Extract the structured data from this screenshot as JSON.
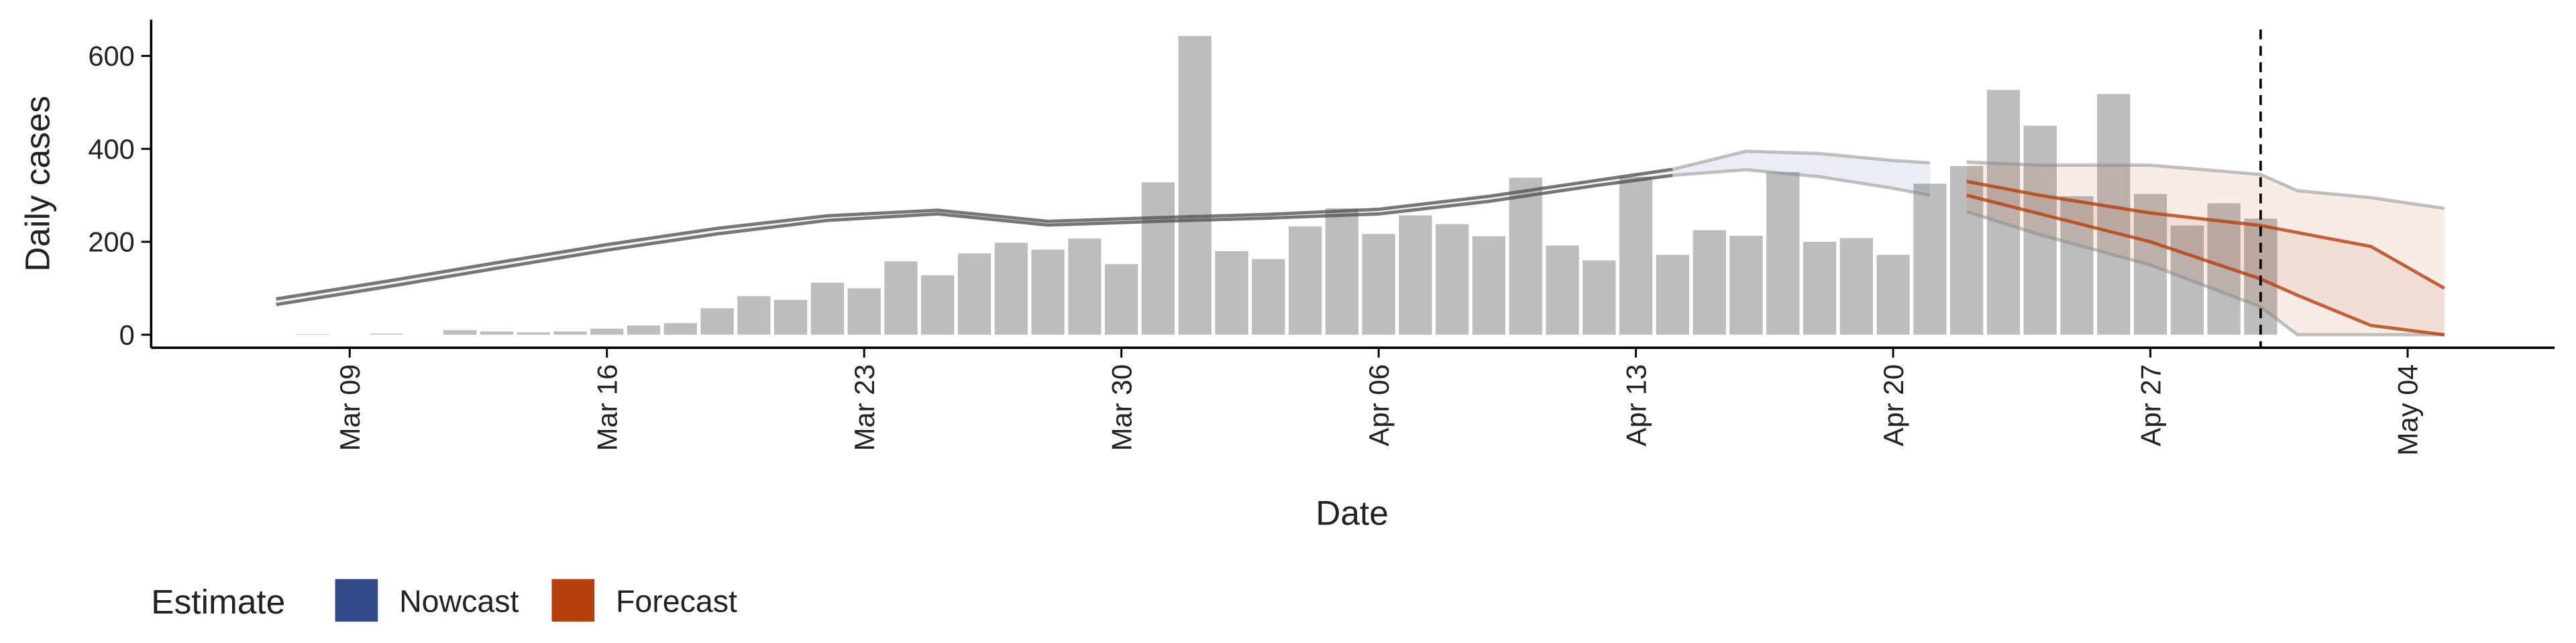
{
  "chart_data": {
    "type": "bar",
    "xlabel": "Date",
    "ylabel": "Daily cases",
    "x": [
      "Mar 08",
      "Mar 09",
      "Mar 10",
      "Mar 11",
      "Mar 12",
      "Mar 13",
      "Mar 14",
      "Mar 15",
      "Mar 16",
      "Mar 17",
      "Mar 18",
      "Mar 19",
      "Mar 20",
      "Mar 21",
      "Mar 22",
      "Mar 23",
      "Mar 24",
      "Mar 25",
      "Mar 26",
      "Mar 27",
      "Mar 28",
      "Mar 29",
      "Mar 30",
      "Mar 31",
      "Apr 01",
      "Apr 02",
      "Apr 03",
      "Apr 04",
      "Apr 05",
      "Apr 06",
      "Apr 07",
      "Apr 08",
      "Apr 09",
      "Apr 10",
      "Apr 11",
      "Apr 12",
      "Apr 13",
      "Apr 14",
      "Apr 15",
      "Apr 16",
      "Apr 17",
      "Apr 18",
      "Apr 19",
      "Apr 20",
      "Apr 21",
      "Apr 22",
      "Apr 23",
      "Apr 24",
      "Apr 25",
      "Apr 26",
      "Apr 27",
      "Apr 28",
      "Apr 29",
      "Apr 30"
    ],
    "values": [
      1,
      0,
      2,
      0,
      10,
      7,
      5,
      7,
      13,
      20,
      25,
      57,
      83,
      75,
      112,
      100,
      158,
      128,
      175,
      198,
      183,
      207,
      152,
      328,
      643,
      180,
      163,
      233,
      272,
      217,
      257,
      238,
      212,
      338,
      192,
      160,
      340,
      172,
      225,
      213,
      350,
      200,
      208,
      172,
      325,
      363,
      527,
      450,
      298,
      518,
      303,
      235,
      283,
      250
    ],
    "color": "#bdbdbd",
    "xlim": [
      "Mar 04",
      "May 08"
    ],
    "ylim": [
      -28,
      678
    ],
    "xticks": [
      "Mar 09",
      "Mar 16",
      "Mar 23",
      "Mar 30",
      "Apr 06",
      "Apr 13",
      "Apr 20",
      "Apr 27",
      "May 04"
    ],
    "yticks": [
      0,
      200,
      400,
      600
    ],
    "vline": "Apr 30",
    "legend_title": "Estimate",
    "bands": [
      {
        "color": "#555555",
        "x": [
          "Mar 07",
          "Mar 10",
          "Mar 13",
          "Mar 16",
          "Mar 19",
          "Mar 22",
          "Mar 25",
          "Mar 28",
          "Mar 31",
          "Apr 03",
          "Apr 06",
          "Apr 09",
          "Apr 12",
          "Apr 14"
        ],
        "lower": [
          65,
          103,
          143,
          182,
          217,
          246,
          260,
          236,
          244,
          251,
          260,
          287,
          322,
          343
        ],
        "upper": [
          77,
          115,
          155,
          194,
          229,
          256,
          268,
          244,
          252,
          259,
          270,
          298,
          333,
          356
        ]
      },
      {
        "name": "Nowcast",
        "color": "#344b8a",
        "x": [
          "Apr 14",
          "Apr 16",
          "Apr 18",
          "Apr 20",
          "Apr 21"
        ],
        "lower": [
          343,
          355,
          340,
          315,
          300
        ],
        "upper": [
          356,
          395,
          390,
          375,
          370
        ]
      },
      {
        "name": "Forecast",
        "color": "#b5400b",
        "x": [
          "Apr 22",
          "Apr 24",
          "Apr 27",
          "Apr 30",
          "May 01",
          "May 03",
          "May 05"
        ],
        "lower": [
          265,
          215,
          150,
          60,
          0,
          0,
          0
        ],
        "upper": [
          372,
          365,
          365,
          345,
          310,
          295,
          272
        ]
      },
      {
        "color": "#b5400b",
        "x": [
          "Apr 22",
          "Apr 24",
          "Apr 27",
          "Apr 30",
          "May 01",
          "May 03",
          "May 05"
        ],
        "lower": [
          300,
          260,
          200,
          120,
          85,
          20,
          0
        ],
        "upper": [
          330,
          300,
          262,
          235,
          220,
          190,
          100
        ]
      }
    ]
  }
}
